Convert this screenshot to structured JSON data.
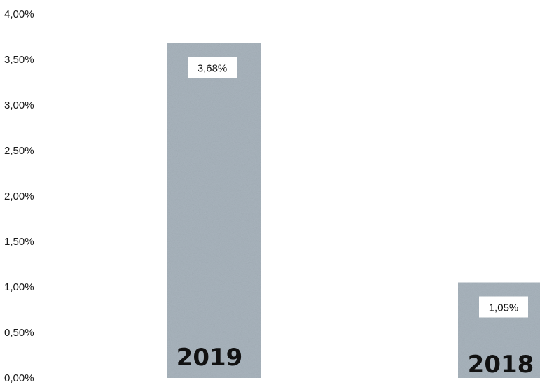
{
  "chart_data": {
    "type": "bar",
    "categories": [
      "2019",
      "2018"
    ],
    "values": [
      3.68,
      1.05
    ],
    "data_labels": [
      "3,68%",
      "1,05%"
    ],
    "ylim": [
      0,
      4.0
    ],
    "y_ticks": [
      "0,00%",
      "0,50%",
      "1,00%",
      "1,50%",
      "2,00%",
      "2,50%",
      "3,00%",
      "3,50%",
      "4,00%"
    ],
    "title": "",
    "xlabel": "",
    "ylabel": "",
    "grid": false,
    "legend": "none",
    "bar_color": "#a9b4bd"
  }
}
